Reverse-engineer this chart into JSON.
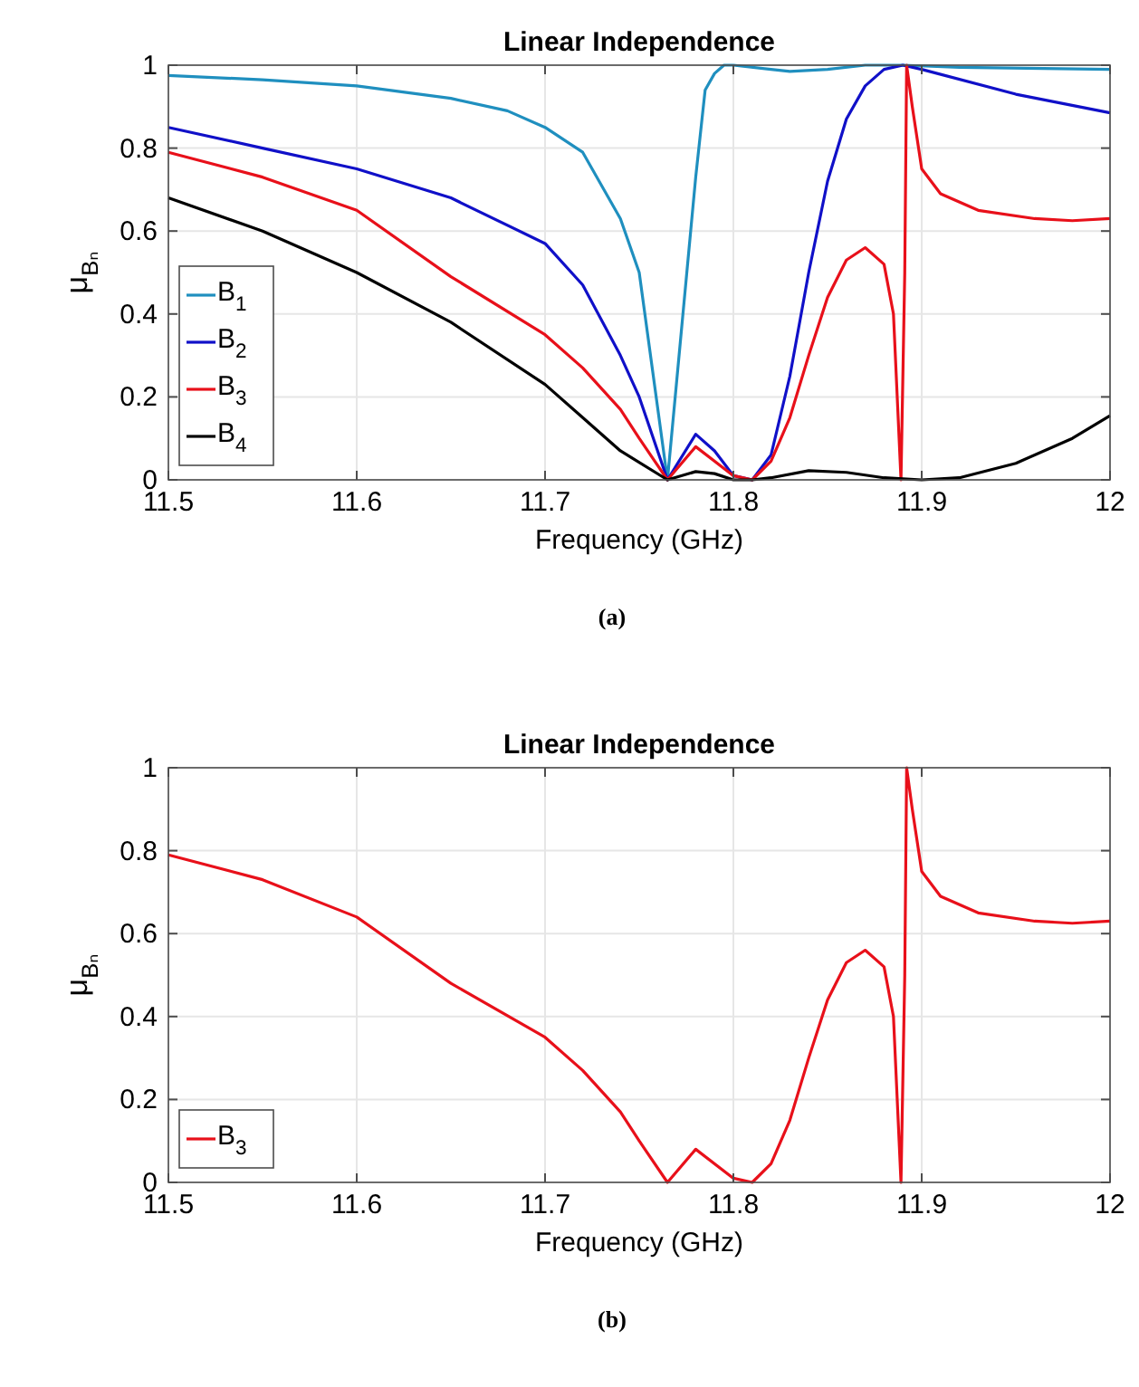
{
  "chart_data": [
    {
      "type": "line",
      "title": "Linear Independence",
      "xlabel": "Frequency (GHz)",
      "ylabel": "μ$_{Bₙ}$",
      "annotations": [
        "(a)"
      ],
      "xlim": [
        11.5,
        12
      ],
      "xticks": [
        11.5,
        11.6,
        11.7,
        11.8,
        11.9,
        12
      ],
      "ylim": [
        0,
        1
      ],
      "yticks": [
        0,
        0.2,
        0.4,
        0.6,
        0.8,
        1
      ],
      "grid": true,
      "legend": "bottom left",
      "line_style": "solid",
      "marker": "none",
      "series": [
        {
          "name": "B$_{1}$",
          "color": "#1f8fbf",
          "x": [
            11.5,
            11.55,
            11.6,
            11.65,
            11.68,
            11.7,
            11.72,
            11.74,
            11.75,
            11.765,
            11.78,
            11.785,
            11.79,
            11.795,
            11.8,
            11.82,
            11.83,
            11.85,
            11.87,
            11.89,
            11.92,
            12
          ],
          "values": [
            0.975,
            0.965,
            0.95,
            0.92,
            0.89,
            0.85,
            0.79,
            0.63,
            0.5,
            0,
            0.73,
            0.94,
            0.98,
            1,
            1,
            0.99,
            0.985,
            0.99,
            1,
            1,
            0.995,
            0.99
          ]
        },
        {
          "name": "B$_{2}$",
          "color": "#1010c8",
          "x": [
            11.5,
            11.55,
            11.6,
            11.65,
            11.7,
            11.72,
            11.74,
            11.75,
            11.765,
            11.78,
            11.79,
            11.8,
            11.81,
            11.82,
            11.83,
            11.84,
            11.85,
            11.86,
            11.87,
            11.88,
            11.89,
            11.9,
            11.95,
            12
          ],
          "values": [
            0.85,
            0.8,
            0.75,
            0.68,
            0.57,
            0.47,
            0.3,
            0.2,
            0,
            0.11,
            0.07,
            0.01,
            0,
            0.06,
            0.25,
            0.5,
            0.72,
            0.87,
            0.95,
            0.99,
            1,
            0.99,
            0.93,
            0.885
          ]
        },
        {
          "name": "B$_{3}$",
          "color": "#e8101a",
          "x": [
            11.5,
            11.55,
            11.6,
            11.65,
            11.7,
            11.72,
            11.74,
            11.75,
            11.765,
            11.78,
            11.8,
            11.81,
            11.82,
            11.83,
            11.84,
            11.85,
            11.86,
            11.87,
            11.88,
            11.885,
            11.888,
            11.889,
            11.891,
            11.892,
            11.895,
            11.9,
            11.91,
            11.93,
            11.96,
            11.98,
            12
          ],
          "values": [
            0.79,
            0.73,
            0.65,
            0.49,
            0.35,
            0.27,
            0.17,
            0.1,
            0,
            0.08,
            0.01,
            0,
            0.045,
            0.15,
            0.3,
            0.44,
            0.53,
            0.56,
            0.52,
            0.4,
            0.1,
            0,
            0.5,
            1,
            0.9,
            0.75,
            0.69,
            0.65,
            0.63,
            0.625,
            0.63
          ]
        },
        {
          "name": "B$_{4}$",
          "color": "#000000",
          "x": [
            11.5,
            11.55,
            11.6,
            11.65,
            11.7,
            11.72,
            11.74,
            11.765,
            11.78,
            11.79,
            11.8,
            11.81,
            11.82,
            11.84,
            11.86,
            11.88,
            11.9,
            11.92,
            11.95,
            11.98,
            12
          ],
          "values": [
            0.68,
            0.6,
            0.5,
            0.38,
            0.23,
            0.15,
            0.07,
            0,
            0.02,
            0.015,
            0,
            0,
            0.005,
            0.022,
            0.018,
            0.005,
            0,
            0.005,
            0.04,
            0.1,
            0.155
          ]
        }
      ]
    },
    {
      "type": "line",
      "title": "Linear Independence",
      "xlabel": "Frequency (GHz)",
      "ylabel": "μ$_{Bₙ}$",
      "annotations": [
        "(b)"
      ],
      "xlim": [
        11.5,
        12
      ],
      "xticks": [
        11.5,
        11.6,
        11.7,
        11.8,
        11.9,
        12
      ],
      "ylim": [
        0,
        1
      ],
      "yticks": [
        0,
        0.2,
        0.4,
        0.6,
        0.8,
        1
      ],
      "grid": true,
      "legend": "bottom left",
      "line_style": "solid",
      "marker": "none",
      "series": [
        {
          "name": "B$_{3}$",
          "color": "#e8101a",
          "x": [
            11.5,
            11.55,
            11.6,
            11.65,
            11.7,
            11.72,
            11.74,
            11.75,
            11.765,
            11.78,
            11.8,
            11.81,
            11.82,
            11.83,
            11.84,
            11.85,
            11.86,
            11.87,
            11.88,
            11.885,
            11.888,
            11.889,
            11.891,
            11.892,
            11.895,
            11.9,
            11.91,
            11.93,
            11.96,
            11.98,
            12
          ],
          "values": [
            0.79,
            0.73,
            0.64,
            0.48,
            0.35,
            0.27,
            0.17,
            0.1,
            0,
            0.08,
            0.01,
            0,
            0.045,
            0.15,
            0.3,
            0.44,
            0.53,
            0.56,
            0.52,
            0.4,
            0.1,
            0,
            0.5,
            1,
            0.9,
            0.75,
            0.69,
            0.65,
            0.63,
            0.625,
            0.63
          ]
        }
      ]
    }
  ]
}
